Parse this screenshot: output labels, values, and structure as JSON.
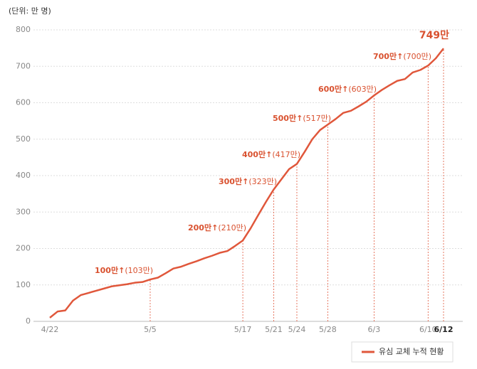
{
  "chart_data": {
    "type": "line",
    "y_axis_label": "(단위: 만 명)",
    "categories": [
      "4/22",
      null,
      null,
      null,
      null,
      null,
      null,
      null,
      null,
      null,
      null,
      null,
      null,
      "5/5",
      null,
      null,
      null,
      null,
      null,
      null,
      null,
      null,
      null,
      null,
      null,
      "5/17",
      null,
      null,
      null,
      "5/21",
      null,
      null,
      "5/24",
      null,
      null,
      null,
      "5/28",
      null,
      null,
      null,
      null,
      null,
      "6/3",
      null,
      null,
      null,
      null,
      null,
      null,
      "6/10",
      null,
      "6/12"
    ],
    "series": [
      {
        "name": "유심 교체 누적 현황",
        "color": "#e0573b",
        "values": [
          10,
          27,
          30,
          57,
          72,
          78,
          84,
          90,
          96,
          99,
          102,
          106,
          108,
          115,
          120,
          132,
          145,
          150,
          158,
          165,
          173,
          180,
          188,
          193,
          207,
          222,
          255,
          292,
          328,
          362,
          390,
          418,
          432,
          465,
          500,
          525,
          540,
          555,
          572,
          578,
          590,
          603,
          620,
          635,
          648,
          660,
          665,
          683,
          690,
          702,
          722,
          749
        ],
        "value_labels": [
          null,
          null,
          null,
          null,
          null,
          null,
          null,
          null,
          null,
          null,
          null,
          null,
          null,
          null,
          null,
          null,
          null,
          null,
          null,
          null,
          null,
          null,
          null,
          null,
          null,
          null,
          null,
          null,
          null,
          null,
          null,
          null,
          null,
          null,
          null,
          null,
          null,
          null,
          null,
          null,
          null,
          null,
          null,
          null,
          null,
          null,
          null,
          null,
          null,
          null,
          null,
          "749만"
        ]
      }
    ],
    "ylim": [
      0,
      800
    ],
    "yticks": [
      0,
      100,
      200,
      300,
      400,
      500,
      600,
      700,
      800
    ],
    "grid": true,
    "annotations": [
      {
        "bold": "100만↑",
        "detail": "(103만)"
      },
      {
        "bold": "200만↑",
        "detail": "(210만)"
      },
      {
        "bold": "300만↑",
        "detail": "(323만)"
      },
      {
        "bold": "400만↑",
        "detail": "(417만)"
      },
      {
        "bold": "500만↑",
        "detail": "(517만)"
      },
      {
        "bold": "600만↑",
        "detail": "(603만)"
      },
      {
        "bold": "700만↑",
        "detail": "(700만)"
      }
    ],
    "legend": "bottom-right"
  }
}
